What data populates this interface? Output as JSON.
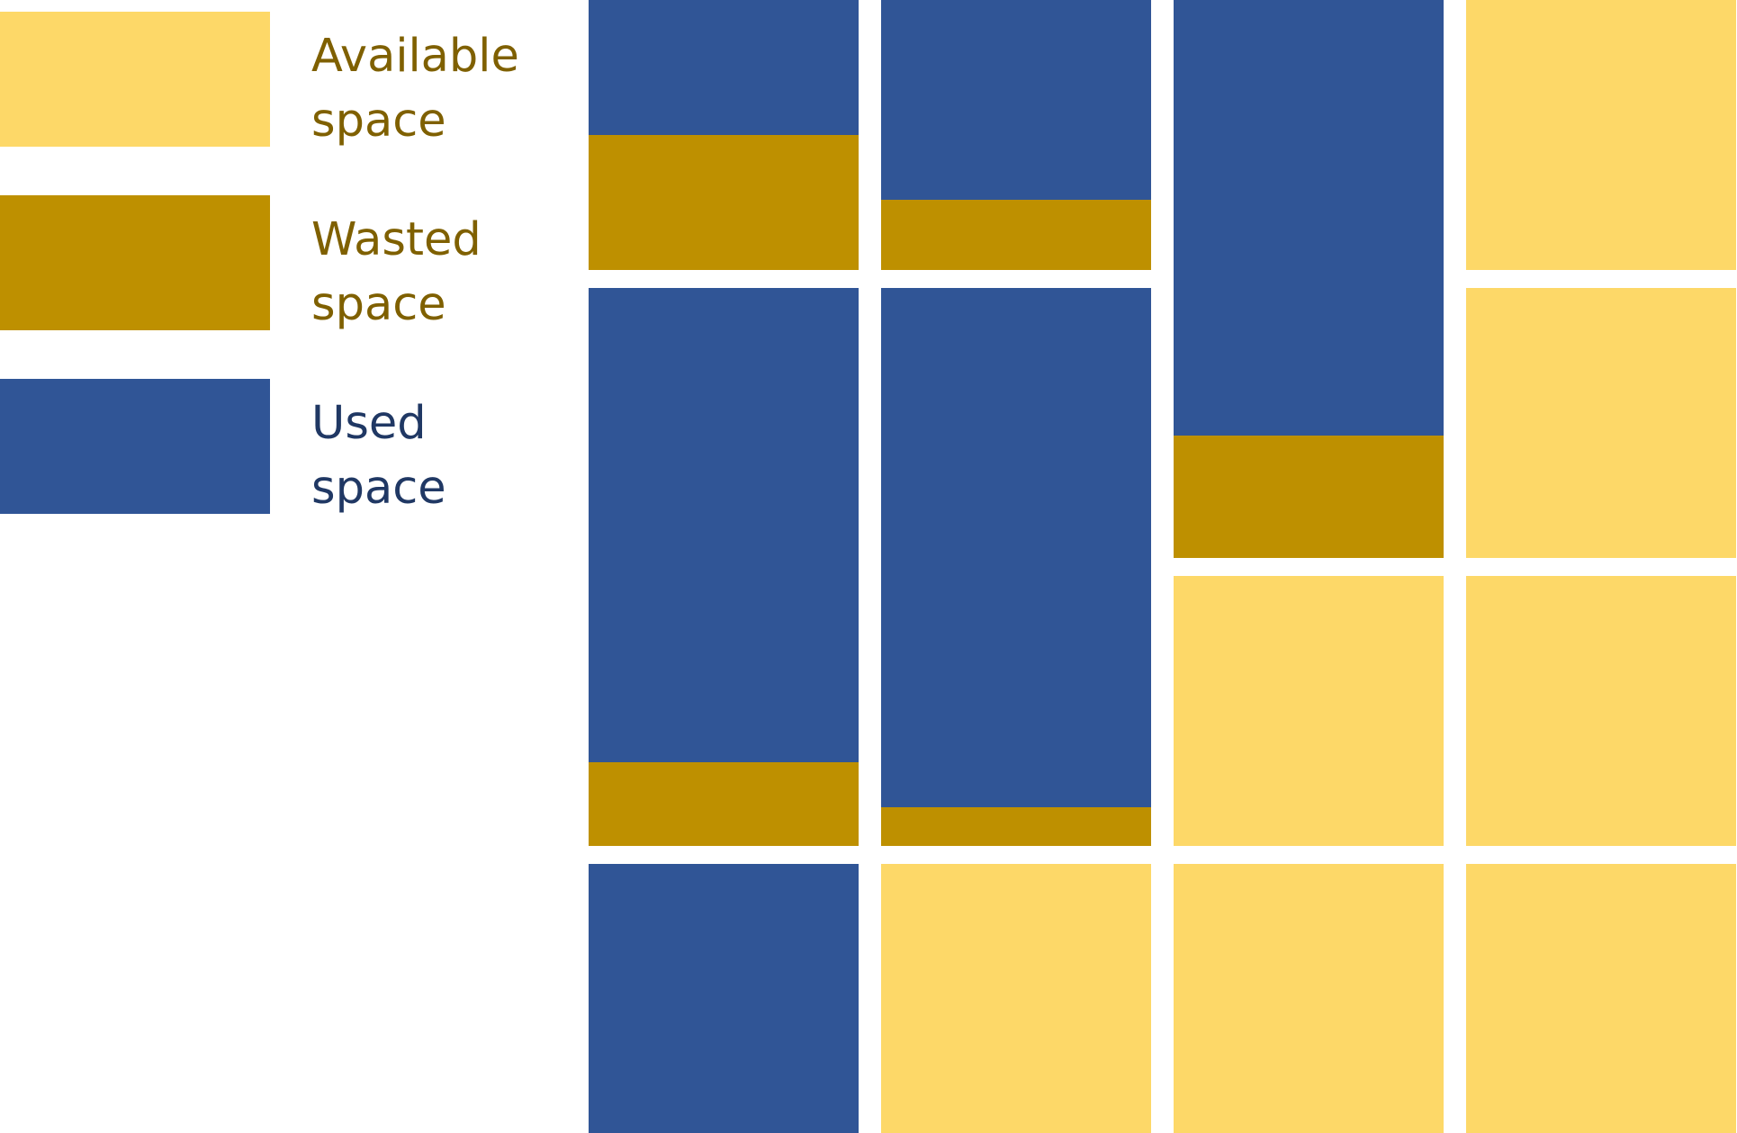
{
  "colors": {
    "available": "#FDD868",
    "wasted": "#BE9000",
    "used": "#305596",
    "available_text": "#7F6000",
    "wasted_text": "#7F6000",
    "used_text": "#203864"
  },
  "legend": [
    {
      "key": "available",
      "line1": "Available",
      "line2": "space"
    },
    {
      "key": "wasted",
      "line1": "Wasted",
      "line2": "space"
    },
    {
      "key": "used",
      "line1": "Used",
      "line2": "space"
    }
  ],
  "blocks": [
    {
      "column": 1,
      "rows": 1,
      "used": 0.5,
      "wasted": 0.5
    },
    {
      "column": 1,
      "rows": 2,
      "used": 0.85,
      "wasted": 0.15
    },
    {
      "column": 1,
      "rows": 1,
      "used": 1.0,
      "wasted": 0.0
    },
    {
      "column": 2,
      "rows": 1,
      "used": 0.74,
      "wasted": 0.26
    },
    {
      "column": 2,
      "rows": 2,
      "used": 0.93,
      "wasted": 0.07
    },
    {
      "column": 2,
      "rows": 1,
      "used": 0.0,
      "wasted": 0.0
    },
    {
      "column": 3,
      "rows": 2,
      "used": 0.78,
      "wasted": 0.22
    },
    {
      "column": 3,
      "rows": 1,
      "used": 0.0,
      "wasted": 0.0
    },
    {
      "column": 3,
      "rows": 1,
      "used": 0.0,
      "wasted": 0.0
    },
    {
      "column": 4,
      "rows": 1,
      "used": 0.0,
      "wasted": 0.0
    },
    {
      "column": 4,
      "rows": 1,
      "used": 0.0,
      "wasted": 0.0
    },
    {
      "column": 4,
      "rows": 1,
      "used": 0.0,
      "wasted": 0.0
    },
    {
      "column": 4,
      "rows": 1,
      "used": 0.0,
      "wasted": 0.0
    }
  ]
}
